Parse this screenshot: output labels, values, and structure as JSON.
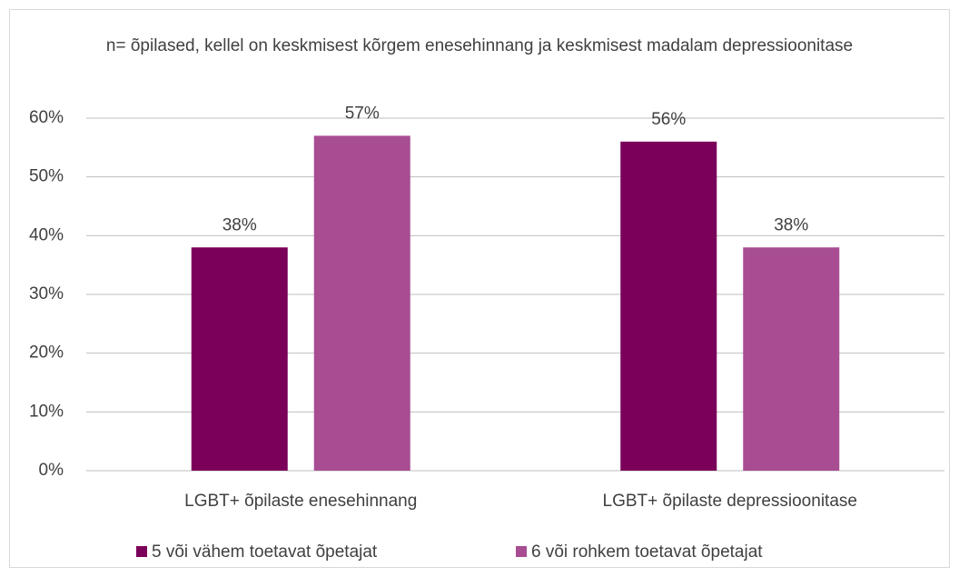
{
  "chart_data": {
    "type": "bar",
    "title": "n= õpilased, kellel on keskmisest kõrgem enesehinnang ja keskmisest madalam depressioonitase",
    "categories": [
      "LGBT+ õpilaste enesehinnang",
      "LGBT+ õpilaste depressioonitase"
    ],
    "series": [
      {
        "name": "5 või vähem toetavat õpetajat",
        "color": "#7b005a",
        "values": [
          38,
          56
        ],
        "value_labels": [
          "38%",
          "56%"
        ]
      },
      {
        "name": "6 või rohkem toetavat õpetajat",
        "color": "#a84d92",
        "values": [
          57,
          38
        ],
        "value_labels": [
          "57%",
          "38%"
        ]
      }
    ],
    "ylim": [
      0,
      60
    ],
    "yticks": [
      {
        "value": 0,
        "label": "0%"
      },
      {
        "value": 10,
        "label": "10%"
      },
      {
        "value": 20,
        "label": "20%"
      },
      {
        "value": 30,
        "label": "30%"
      },
      {
        "value": 40,
        "label": "40%"
      },
      {
        "value": 50,
        "label": "50%"
      },
      {
        "value": 60,
        "label": "60%"
      }
    ],
    "grid": true,
    "legend": "bottom"
  }
}
